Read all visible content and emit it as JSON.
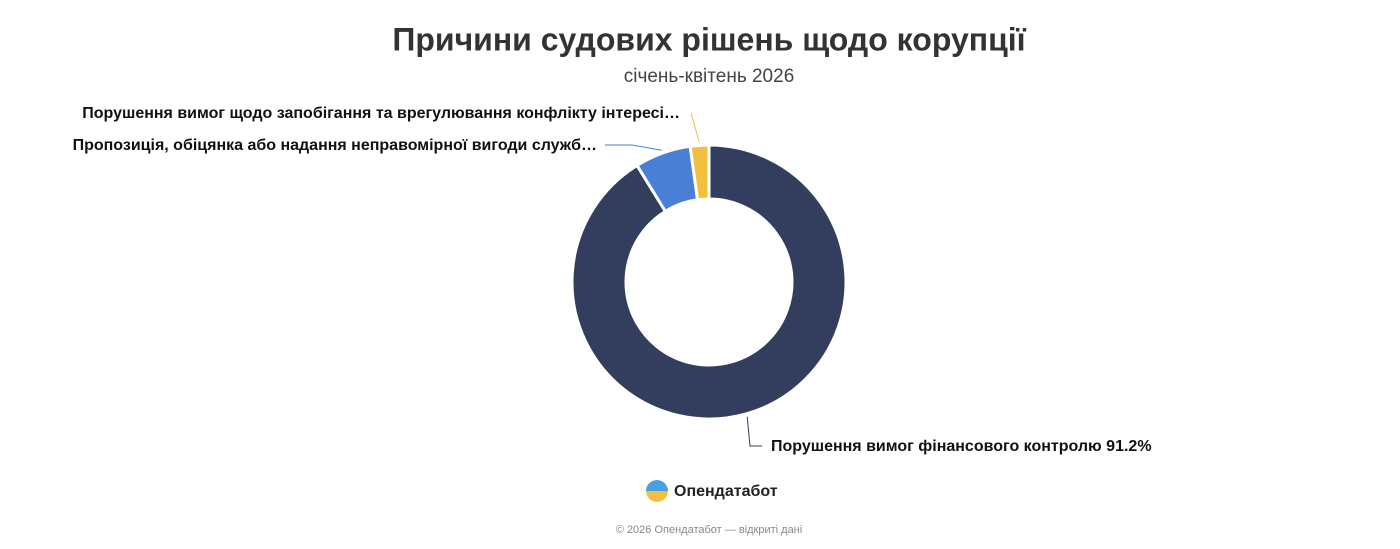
{
  "chart_data": {
    "type": "donut",
    "title": "Причини судових рішень щодо корупції",
    "subtitle": "січень-квітень 2026",
    "categories": [
      "Порушення вимог фінансового контролю",
      "Пропозиція, обіцянка або надання неправомірної вигоди служб…",
      "Порушення вимог щодо запобігання та врегулювання конфлікту інтересі…"
    ],
    "values": [
      91.2,
      6.6,
      2.2
    ],
    "value_labels": [
      "91.2%",
      null,
      null
    ],
    "colors": [
      "#333e5e",
      "#4a7fd6",
      "#f2c03e"
    ]
  },
  "footer": {
    "brand": "Опендатабот",
    "copyright": "© 2026 Опендатабот — відкриті дані"
  }
}
